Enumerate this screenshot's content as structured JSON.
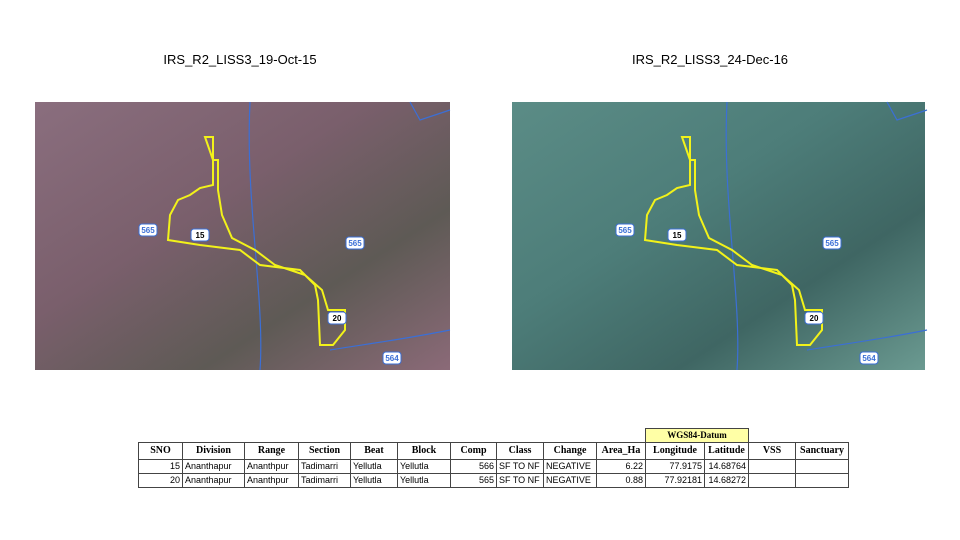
{
  "images": [
    {
      "title": "IRS_R2_LISS3_19-Oct-15",
      "labels": [
        "565",
        "15",
        "565",
        "20",
        "564"
      ]
    },
    {
      "title": "IRS_R2_LISS3_24-Dec-16",
      "labels": [
        "565",
        "15",
        "565",
        "20",
        "564"
      ]
    }
  ],
  "table": {
    "group_header": "WGS84-Datum",
    "columns": [
      "SNO",
      "Division",
      "Range",
      "Section",
      "Beat",
      "Block",
      "Comp",
      "Class",
      "Change",
      "Area_Ha",
      "Longitude",
      "Latitude",
      "VSS",
      "Sanctuary"
    ],
    "rows": [
      [
        "15",
        "Ananthapur",
        "Ananthpur",
        "Tadimarri",
        "Yellutla",
        "Yellutla",
        "566",
        "SF TO NF",
        "NEGATIVE",
        "6.22",
        "77.9175",
        "14.68764",
        "",
        ""
      ],
      [
        "20",
        "Ananthapur",
        "Ananthpur",
        "Tadimarri",
        "Yellutla",
        "Yellutla",
        "565",
        "SF TO NF",
        "NEGATIVE",
        "0.88",
        "77.92181",
        "14.68272",
        "",
        ""
      ]
    ]
  }
}
